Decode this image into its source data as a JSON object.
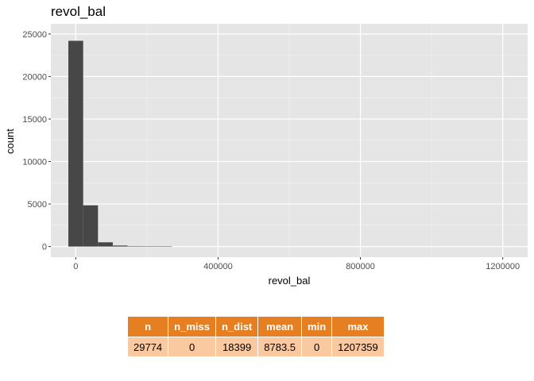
{
  "chart_data": {
    "type": "histogram",
    "title": "revol_bal",
    "xlabel": "revol_bal",
    "ylabel": "count",
    "x_ticks": [
      0,
      400000,
      800000,
      1200000
    ],
    "x_tick_labels": [
      "0",
      "400000",
      "800000",
      "1200000"
    ],
    "y_ticks": [
      0,
      5000,
      10000,
      15000,
      20000,
      25000
    ],
    "y_tick_labels": [
      "0",
      "5000",
      "10000",
      "15000",
      "20000",
      "25000"
    ],
    "xlim": [
      -70000,
      1270000
    ],
    "ylim": [
      -1250,
      26200
    ],
    "bin_width": 41633,
    "bins": [
      {
        "x0": -20816,
        "x1": 20816,
        "count": 24200
      },
      {
        "x0": 20816,
        "x1": 62449,
        "count": 4850
      },
      {
        "x0": 62449,
        "x1": 104082,
        "count": 500
      },
      {
        "x0": 104082,
        "x1": 145714,
        "count": 120
      },
      {
        "x0": 145714,
        "x1": 187347,
        "count": 50
      },
      {
        "x0": 187347,
        "x1": 228980,
        "count": 25
      },
      {
        "x0": 228980,
        "x1": 270612,
        "count": 12
      }
    ],
    "grid": true,
    "background": "#e5e5e5",
    "bar_color": "#474747"
  },
  "stats_table": {
    "headers": [
      "n",
      "n_miss",
      "n_dist",
      "mean",
      "min",
      "max"
    ],
    "values": [
      "29774",
      "0",
      "18399",
      "8783.5",
      "0",
      "1207359"
    ],
    "header_color": "#e67e22",
    "cell_color": "#fbc9a0"
  }
}
